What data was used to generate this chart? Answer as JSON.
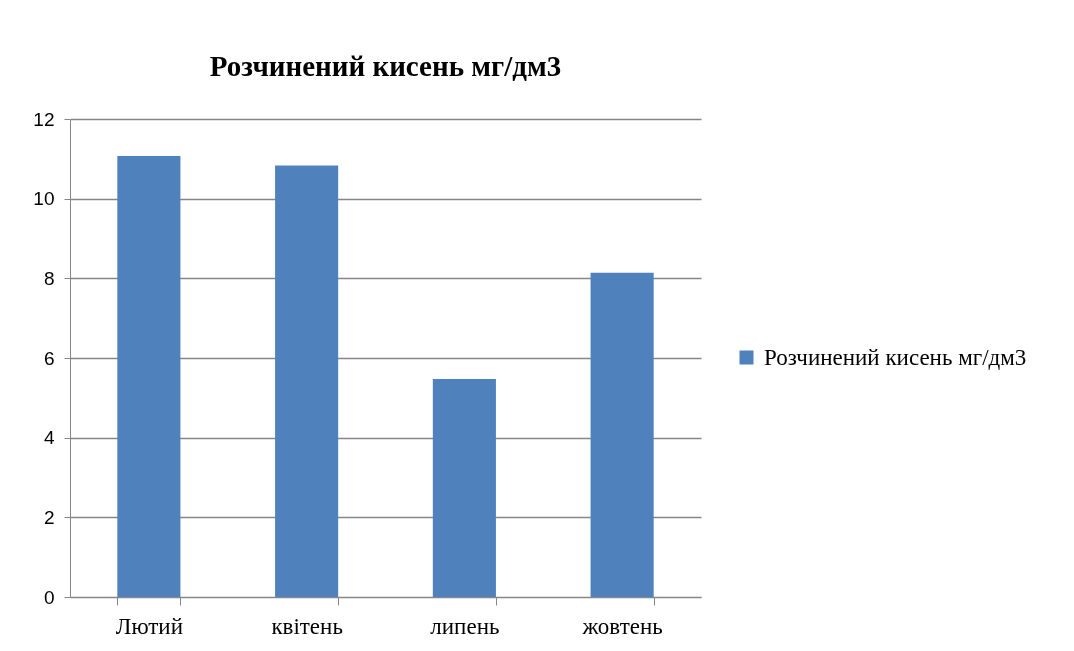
{
  "chart_data": {
    "type": "bar",
    "title": "Розчинений кисень мг/дм3",
    "categories": [
      "Лютий",
      "квітень",
      "липень",
      "жовтень"
    ],
    "series": [
      {
        "name": "Розчинений кисень мг/дм3",
        "color": "#4f81bd",
        "values": [
          11.07,
          10.83,
          5.47,
          8.14
        ]
      }
    ],
    "ylim": [
      0,
      12
    ],
    "yticks": [
      0,
      2,
      4,
      6,
      8,
      10,
      12
    ],
    "grid": "y",
    "legend": "right"
  }
}
